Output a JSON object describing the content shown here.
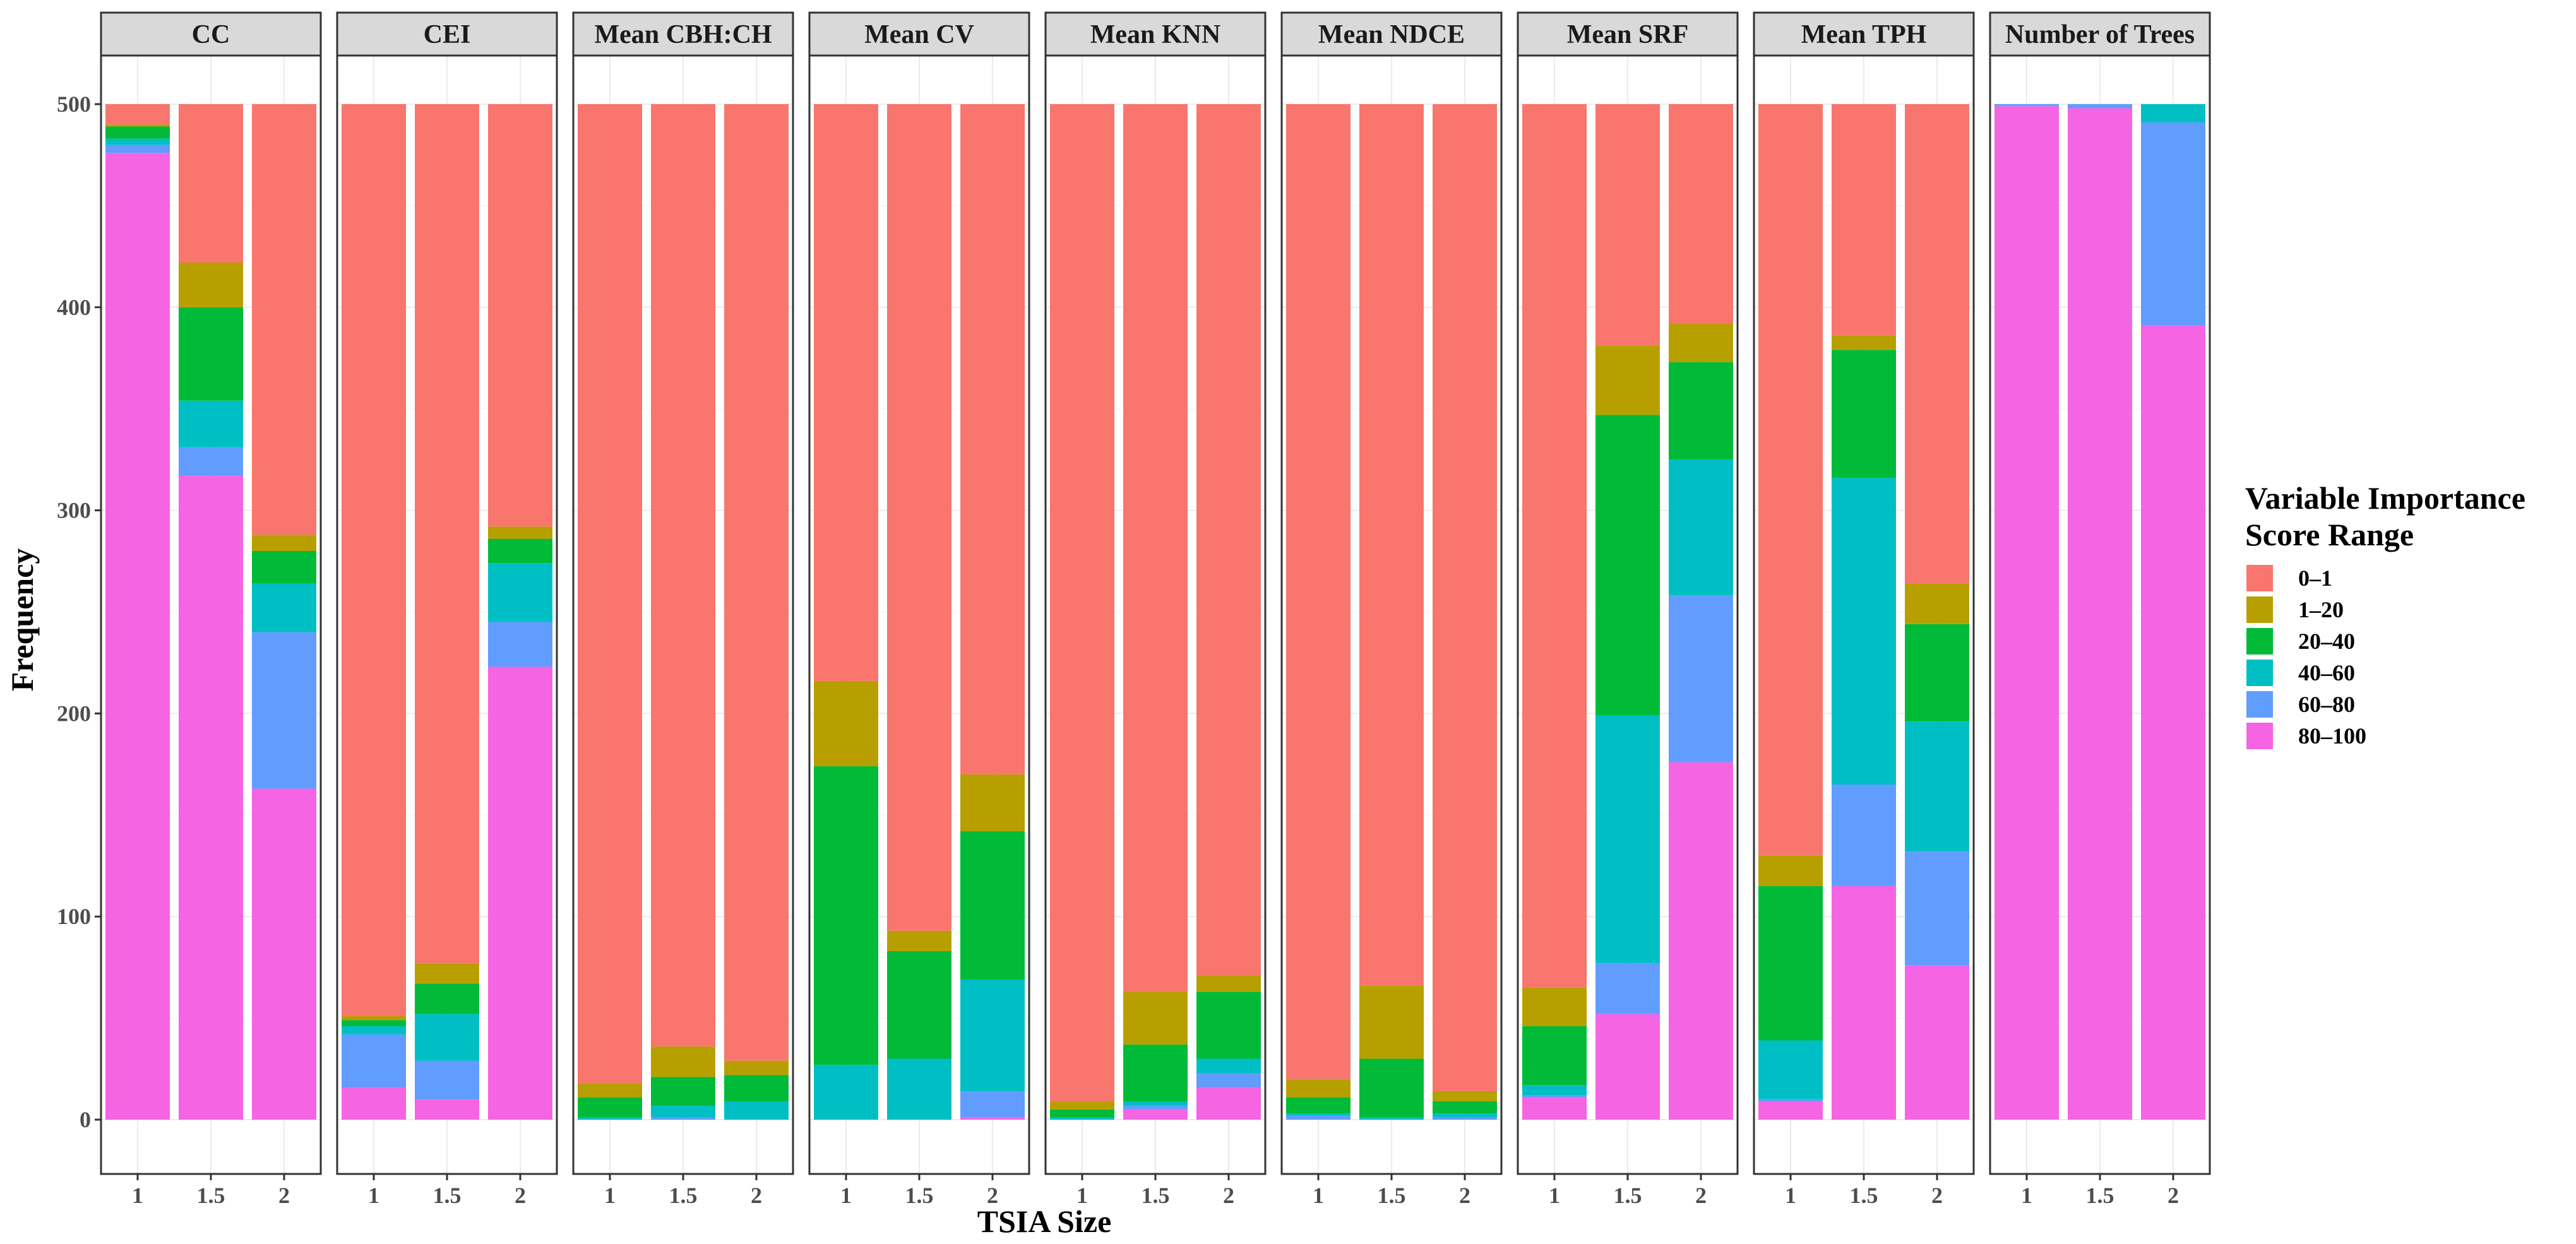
{
  "chart_data": {
    "type": "bar",
    "stacked": true,
    "faceted": true,
    "xlabel": "TSIA Size",
    "ylabel": "Frequency",
    "ylim": [
      0,
      500
    ],
    "yticks": [
      0,
      100,
      200,
      300,
      400,
      500
    ],
    "categories": [
      "1",
      "1.5",
      "2"
    ],
    "legend": {
      "title_lines": [
        "Variable Importance",
        "Score Range"
      ],
      "position": "right",
      "labels": [
        "0–1",
        "1–20",
        "20–40",
        "40–60",
        "60–80",
        "80–100"
      ],
      "colors": [
        "#F8766D",
        "#B79F00",
        "#00BA38",
        "#00BFC4",
        "#619CFF",
        "#F564E3"
      ]
    },
    "stack_order_bottom_to_top": [
      "80–100",
      "60–80",
      "40–60",
      "20–40",
      "1–20",
      "0–1"
    ],
    "panels": [
      {
        "title": "CC",
        "bars": [
          {
            "x": "1",
            "values": {
              "80–100": 476,
              "60–80": 4,
              "40–60": 3,
              "20–40": 6,
              "1–20": 1,
              "0–1": 10
            }
          },
          {
            "x": "1.5",
            "values": {
              "80–100": 317,
              "60–80": 14,
              "40–60": 23,
              "20–40": 46,
              "1–20": 22,
              "0–1": 78
            }
          },
          {
            "x": "2",
            "values": {
              "80–100": 163,
              "60–80": 77,
              "40–60": 24,
              "20–40": 16,
              "1–20": 8,
              "0–1": 212
            }
          }
        ]
      },
      {
        "title": "CEI",
        "bars": [
          {
            "x": "1",
            "values": {
              "80–100": 16,
              "60–80": 26,
              "40–60": 4,
              "20–40": 3,
              "1–20": 2,
              "0–1": 449
            }
          },
          {
            "x": "1.5",
            "values": {
              "80–100": 10,
              "60–80": 19,
              "40–60": 23,
              "20–40": 15,
              "1–20": 10,
              "0–1": 423
            }
          },
          {
            "x": "2",
            "values": {
              "80–100": 223,
              "60–80": 22,
              "40–60": 29,
              "20–40": 12,
              "1–20": 6,
              "0–1": 208
            }
          }
        ]
      },
      {
        "title": "Mean CBH:CH",
        "bars": [
          {
            "x": "1",
            "values": {
              "80–100": 0,
              "60–80": 0,
              "40–60": 1,
              "20–40": 10,
              "1–20": 7,
              "0–1": 482
            }
          },
          {
            "x": "1.5",
            "values": {
              "80–100": 0,
              "60–80": 1,
              "40–60": 6,
              "20–40": 14,
              "1–20": 15,
              "0–1": 464
            }
          },
          {
            "x": "2",
            "values": {
              "80–100": 0,
              "60–80": 0,
              "40–60": 9,
              "20–40": 13,
              "1–20": 7,
              "0–1": 471
            }
          }
        ]
      },
      {
        "title": "Mean CV",
        "bars": [
          {
            "x": "1",
            "values": {
              "80–100": 0,
              "60–80": 0,
              "40–60": 27,
              "20–40": 147,
              "1–20": 42,
              "0–1": 284
            }
          },
          {
            "x": "1.5",
            "values": {
              "80–100": 0,
              "60–80": 0,
              "40–60": 30,
              "20–40": 53,
              "1–20": 10,
              "0–1": 407
            }
          },
          {
            "x": "2",
            "values": {
              "80–100": 1,
              "60–80": 13,
              "40–60": 55,
              "20–40": 73,
              "1–20": 28,
              "0–1": 330
            }
          }
        ]
      },
      {
        "title": "Mean KNN",
        "bars": [
          {
            "x": "1",
            "values": {
              "80–100": 0,
              "60–80": 0,
              "40–60": 1,
              "20–40": 4,
              "1–20": 4,
              "0–1": 491
            }
          },
          {
            "x": "1.5",
            "values": {
              "80–100": 5,
              "60–80": 2,
              "40–60": 2,
              "20–40": 28,
              "1–20": 26,
              "0–1": 437
            }
          },
          {
            "x": "2",
            "values": {
              "80–100": 16,
              "60–80": 7,
              "40–60": 7,
              "20–40": 33,
              "1–20": 8,
              "0–1": 429
            }
          }
        ]
      },
      {
        "title": "Mean NDCE",
        "bars": [
          {
            "x": "1",
            "values": {
              "80–100": 0,
              "60–80": 2,
              "40–60": 1,
              "20–40": 8,
              "1–20": 9,
              "0–1": 480
            }
          },
          {
            "x": "1.5",
            "values": {
              "80–100": 0,
              "60–80": 0,
              "40–60": 1,
              "20–40": 29,
              "1–20": 36,
              "0–1": 434
            }
          },
          {
            "x": "2",
            "values": {
              "80–100": 0,
              "60–80": 1,
              "40–60": 2,
              "20–40": 6,
              "1–20": 5,
              "0–1": 486
            }
          }
        ]
      },
      {
        "title": "Mean SRF",
        "bars": [
          {
            "x": "1",
            "values": {
              "80–100": 11,
              "60–80": 1,
              "40–60": 5,
              "20–40": 29,
              "1–20": 19,
              "0–1": 435
            }
          },
          {
            "x": "1.5",
            "values": {
              "80–100": 52,
              "60–80": 25,
              "40–60": 122,
              "20–40": 148,
              "1–20": 34,
              "0–1": 119
            }
          },
          {
            "x": "2",
            "values": {
              "80–100": 176,
              "60–80": 82,
              "40–60": 67,
              "20–40": 48,
              "1–20": 19,
              "0–1": 108
            }
          }
        ]
      },
      {
        "title": "Mean TPH",
        "bars": [
          {
            "x": "1",
            "values": {
              "80–100": 9,
              "60–80": 1,
              "40–60": 29,
              "20–40": 76,
              "1–20": 15,
              "0–1": 370
            }
          },
          {
            "x": "1.5",
            "values": {
              "80–100": 115,
              "60–80": 50,
              "40–60": 151,
              "20–40": 63,
              "1–20": 7,
              "0–1": 114
            }
          },
          {
            "x": "2",
            "values": {
              "80–100": 76,
              "60–80": 56,
              "40–60": 64,
              "20–40": 48,
              "1–20": 20,
              "0–1": 236
            }
          }
        ]
      },
      {
        "title": "Number of Trees",
        "bars": [
          {
            "x": "1",
            "values": {
              "80–100": 499,
              "60–80": 1,
              "40–60": 0,
              "20–40": 0,
              "1–20": 0,
              "0–1": 0
            }
          },
          {
            "x": "1.5",
            "values": {
              "80–100": 498,
              "60–80": 2,
              "40–60": 0,
              "20–40": 0,
              "1–20": 0,
              "0–1": 0
            }
          },
          {
            "x": "2",
            "values": {
              "80–100": 391,
              "60–80": 100,
              "40–60": 9,
              "20–40": 0,
              "1–20": 0,
              "0–1": 0
            }
          }
        ]
      }
    ]
  }
}
